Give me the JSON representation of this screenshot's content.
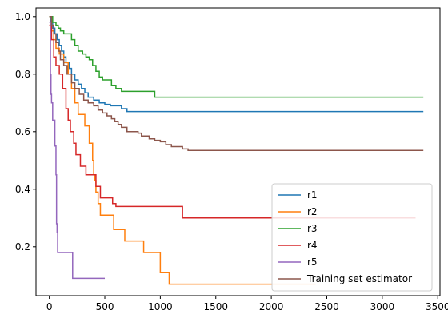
{
  "chart_data": {
    "type": "line",
    "step": true,
    "xlim": [
      -120,
      3520
    ],
    "ylim": [
      0.03,
      1.03
    ],
    "xticks": [
      0,
      500,
      1000,
      1500,
      2000,
      2500,
      3000,
      3500
    ],
    "yticks": [
      0.2,
      0.4,
      0.6,
      0.8,
      1.0
    ],
    "ytick_labels": [
      "0.2",
      "0.4",
      "0.6",
      "0.8",
      "1.0"
    ],
    "grid": false,
    "legend_position": "lower-right",
    "series": [
      {
        "name": "r1",
        "color": "#1f77b4",
        "points": [
          [
            0,
            1.0
          ],
          [
            15,
            0.98
          ],
          [
            30,
            0.96
          ],
          [
            50,
            0.94
          ],
          [
            70,
            0.92
          ],
          [
            90,
            0.9
          ],
          [
            110,
            0.88
          ],
          [
            130,
            0.86
          ],
          [
            150,
            0.84
          ],
          [
            180,
            0.82
          ],
          [
            200,
            0.8
          ],
          [
            230,
            0.78
          ],
          [
            260,
            0.765
          ],
          [
            290,
            0.75
          ],
          [
            320,
            0.735
          ],
          [
            350,
            0.72
          ],
          [
            400,
            0.71
          ],
          [
            450,
            0.7
          ],
          [
            500,
            0.695
          ],
          [
            550,
            0.69
          ],
          [
            650,
            0.68
          ],
          [
            700,
            0.67
          ],
          [
            3370,
            0.67
          ]
        ]
      },
      {
        "name": "r2",
        "color": "#ff7f0e",
        "points": [
          [
            0,
            1.0
          ],
          [
            20,
            0.95
          ],
          [
            40,
            0.92
          ],
          [
            60,
            0.89
          ],
          [
            90,
            0.87
          ],
          [
            130,
            0.84
          ],
          [
            170,
            0.8
          ],
          [
            200,
            0.75
          ],
          [
            230,
            0.7
          ],
          [
            260,
            0.66
          ],
          [
            320,
            0.62
          ],
          [
            360,
            0.56
          ],
          [
            390,
            0.5
          ],
          [
            400,
            0.45
          ],
          [
            410,
            0.43
          ],
          [
            420,
            0.39
          ],
          [
            440,
            0.35
          ],
          [
            460,
            0.31
          ],
          [
            580,
            0.26
          ],
          [
            680,
            0.22
          ],
          [
            850,
            0.18
          ],
          [
            1000,
            0.11
          ],
          [
            1080,
            0.07
          ],
          [
            2350,
            0.07
          ],
          [
            2400,
            0.07
          ]
        ]
      },
      {
        "name": "r3",
        "color": "#2ca02c",
        "points": [
          [
            0,
            1.0
          ],
          [
            30,
            0.98
          ],
          [
            60,
            0.97
          ],
          [
            80,
            0.96
          ],
          [
            100,
            0.95
          ],
          [
            130,
            0.94
          ],
          [
            200,
            0.92
          ],
          [
            230,
            0.9
          ],
          [
            260,
            0.88
          ],
          [
            300,
            0.87
          ],
          [
            330,
            0.86
          ],
          [
            360,
            0.85
          ],
          [
            390,
            0.83
          ],
          [
            420,
            0.81
          ],
          [
            450,
            0.79
          ],
          [
            480,
            0.78
          ],
          [
            560,
            0.76
          ],
          [
            600,
            0.75
          ],
          [
            650,
            0.74
          ],
          [
            950,
            0.72
          ],
          [
            3370,
            0.72
          ]
        ]
      },
      {
        "name": "r4",
        "color": "#d62728",
        "points": [
          [
            0,
            0.97
          ],
          [
            20,
            0.92
          ],
          [
            40,
            0.86
          ],
          [
            60,
            0.83
          ],
          [
            90,
            0.8
          ],
          [
            120,
            0.75
          ],
          [
            150,
            0.68
          ],
          [
            170,
            0.64
          ],
          [
            190,
            0.6
          ],
          [
            220,
            0.56
          ],
          [
            240,
            0.52
          ],
          [
            280,
            0.48
          ],
          [
            330,
            0.45
          ],
          [
            420,
            0.41
          ],
          [
            460,
            0.37
          ],
          [
            570,
            0.35
          ],
          [
            600,
            0.34
          ],
          [
            1200,
            0.3
          ],
          [
            3300,
            0.3
          ]
        ]
      },
      {
        "name": "r5",
        "color": "#9467bd",
        "points": [
          [
            0,
            0.98
          ],
          [
            10,
            0.8
          ],
          [
            15,
            0.73
          ],
          [
            20,
            0.7
          ],
          [
            30,
            0.64
          ],
          [
            50,
            0.55
          ],
          [
            60,
            0.45
          ],
          [
            65,
            0.28
          ],
          [
            70,
            0.25
          ],
          [
            75,
            0.18
          ],
          [
            210,
            0.09
          ],
          [
            500,
            0.09
          ]
        ]
      },
      {
        "name": "Training set estimator",
        "color": "#8c564b",
        "points": [
          [
            0,
            1.0
          ],
          [
            20,
            0.97
          ],
          [
            40,
            0.94
          ],
          [
            60,
            0.91
          ],
          [
            80,
            0.88
          ],
          [
            100,
            0.85
          ],
          [
            130,
            0.83
          ],
          [
            160,
            0.8
          ],
          [
            200,
            0.77
          ],
          [
            230,
            0.75
          ],
          [
            270,
            0.73
          ],
          [
            310,
            0.71
          ],
          [
            350,
            0.7
          ],
          [
            400,
            0.69
          ],
          [
            440,
            0.675
          ],
          [
            480,
            0.665
          ],
          [
            520,
            0.655
          ],
          [
            560,
            0.645
          ],
          [
            590,
            0.635
          ],
          [
            620,
            0.625
          ],
          [
            650,
            0.615
          ],
          [
            700,
            0.6
          ],
          [
            800,
            0.595
          ],
          [
            830,
            0.585
          ],
          [
            900,
            0.575
          ],
          [
            950,
            0.57
          ],
          [
            1000,
            0.565
          ],
          [
            1050,
            0.555
          ],
          [
            1100,
            0.548
          ],
          [
            1200,
            0.54
          ],
          [
            1250,
            0.535
          ],
          [
            3370,
            0.535
          ]
        ]
      }
    ]
  }
}
